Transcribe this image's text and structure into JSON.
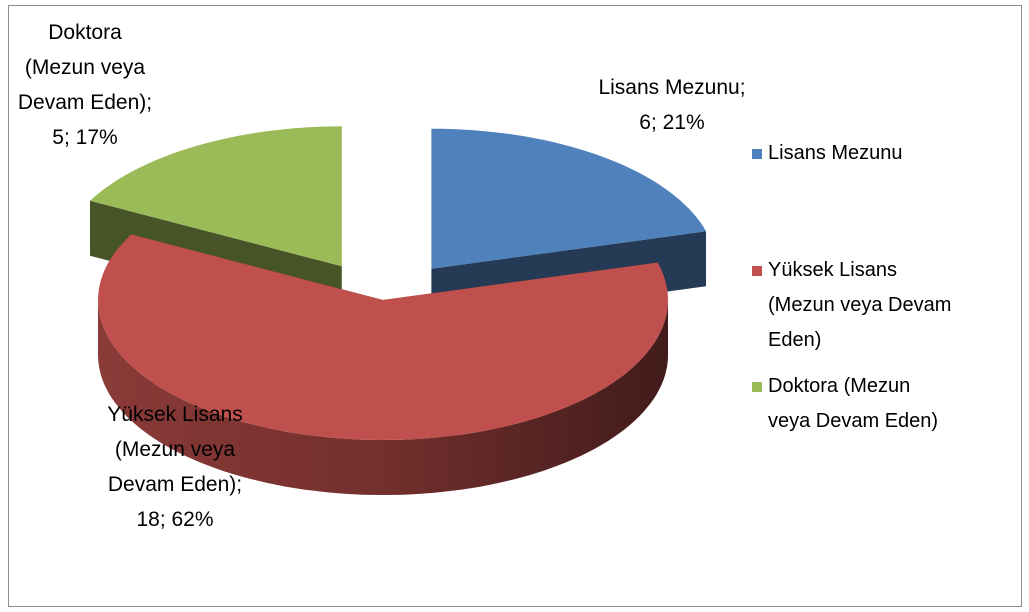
{
  "chart_data": {
    "type": "pie3d",
    "categories": [
      "Lisans Mezunu",
      "Yüksek Lisans (Mezun veya Devam Eden)",
      "Doktora (Mezun veya Devam Eden)"
    ],
    "values": [
      6,
      18,
      5
    ],
    "value_labels": [
      "Lisans Mezunu;\n6; 21%",
      "Yüksek Lisans\n(Mezun veya\nDevam Eden);\n18; 62%",
      "Doktora\n(Mezun veya\nDevam Eden);\n5; 17%"
    ],
    "colors": [
      "#4f81bd",
      "#c0504d",
      "#9bbb59"
    ],
    "exploded": [
      true,
      false,
      true
    ],
    "legend": "right"
  }
}
